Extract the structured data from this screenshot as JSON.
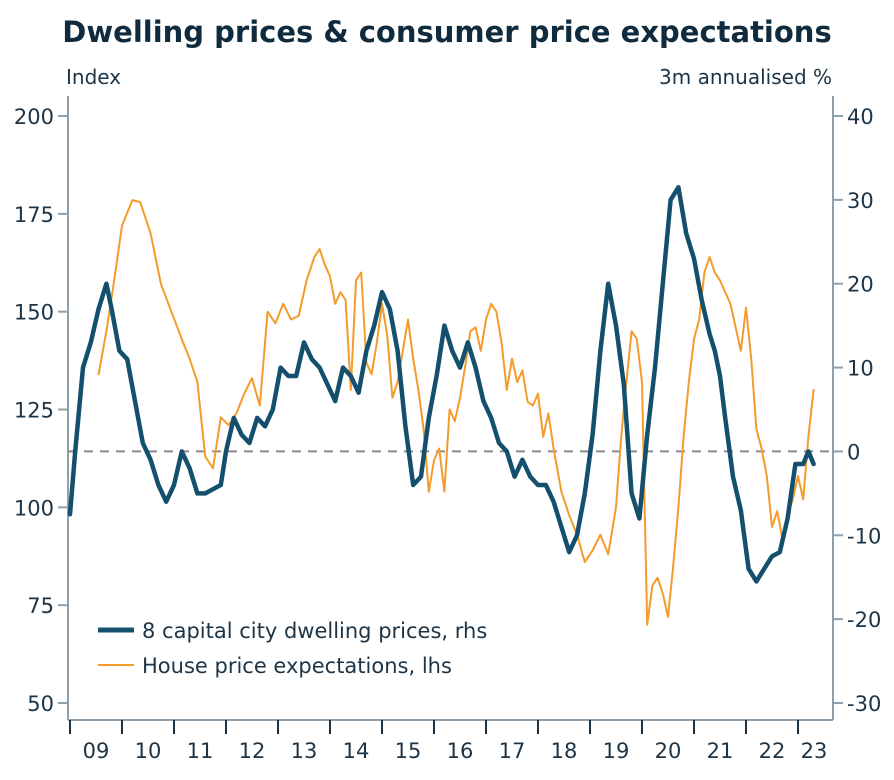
{
  "chart_data": {
    "type": "line",
    "title": "Dwelling prices & consumer price expectations",
    "left_axis": {
      "label": "Index",
      "ylim": [
        50,
        200
      ],
      "ticks": [
        50,
        75,
        100,
        125,
        150,
        175,
        200
      ]
    },
    "right_axis": {
      "label": "3m annualised %",
      "ylim": [
        -30,
        40
      ],
      "ticks": [
        -30,
        -20,
        -10,
        0,
        10,
        20,
        30,
        40
      ]
    },
    "x_axis": {
      "xlim": [
        2009.0,
        2023.6
      ],
      "tick_labels": [
        "09",
        "10",
        "11",
        "12",
        "13",
        "14",
        "15",
        "16",
        "17",
        "18",
        "19",
        "20",
        "21",
        "22",
        "23"
      ]
    },
    "reference_line": {
      "axis": "right",
      "value": 0,
      "style": "dashed"
    },
    "legend": {
      "placement": "bottom-left"
    },
    "colors": {
      "dwelling": "#14506e",
      "expectations": "#f59b2a",
      "axis": "#8fa0aa",
      "text": "#1c3446",
      "refline": "#8a8a8a"
    },
    "series": [
      {
        "name": "8 capital city dwelling prices, rhs",
        "axis": "right",
        "x": [
          2009.0,
          2009.1,
          2009.25,
          2009.4,
          2009.55,
          2009.7,
          2009.8,
          2009.95,
          2010.1,
          2010.25,
          2010.4,
          2010.55,
          2010.7,
          2010.85,
          2011.0,
          2011.15,
          2011.3,
          2011.45,
          2011.6,
          2011.75,
          2011.9,
          2012.0,
          2012.15,
          2012.3,
          2012.45,
          2012.6,
          2012.75,
          2012.9,
          2013.05,
          2013.2,
          2013.35,
          2013.5,
          2013.65,
          2013.8,
          2013.95,
          2014.1,
          2014.25,
          2014.4,
          2014.55,
          2014.7,
          2014.85,
          2015.0,
          2015.15,
          2015.3,
          2015.45,
          2015.6,
          2015.75,
          2015.9,
          2016.05,
          2016.2,
          2016.35,
          2016.5,
          2016.65,
          2016.8,
          2016.95,
          2017.1,
          2017.25,
          2017.4,
          2017.55,
          2017.7,
          2017.85,
          2018.0,
          2018.15,
          2018.3,
          2018.45,
          2018.6,
          2018.75,
          2018.9,
          2019.05,
          2019.2,
          2019.35,
          2019.5,
          2019.65,
          2019.8,
          2019.95,
          2020.1,
          2020.25,
          2020.4,
          2020.55,
          2020.7,
          2020.85,
          2021.0,
          2021.15,
          2021.3,
          2021.4,
          2021.5,
          2021.6,
          2021.75,
          2021.9,
          2022.05,
          2022.2,
          2022.35,
          2022.5,
          2022.65,
          2022.8,
          2022.95,
          2023.1,
          2023.2,
          2023.3
        ],
        "values": [
          -7.5,
          0,
          10,
          13,
          17,
          20,
          17,
          12,
          11,
          6,
          1,
          -1,
          -4,
          -6,
          -4,
          0,
          -2,
          -5,
          -5,
          -4.5,
          -4,
          0,
          4,
          2,
          1,
          4,
          3,
          5,
          10,
          9,
          9,
          13,
          11,
          10,
          8,
          6,
          10,
          9,
          7,
          12,
          15,
          19,
          17,
          12,
          3,
          -4,
          -3,
          4,
          9,
          15,
          12,
          10,
          13,
          10,
          6,
          4,
          1,
          0,
          -3,
          -1,
          -3,
          -4,
          -4,
          -6,
          -9,
          -12,
          -10,
          -5,
          2,
          12,
          20,
          15,
          8,
          -5,
          -8,
          2,
          10,
          20,
          30,
          31.5,
          26,
          23,
          18,
          14,
          12,
          9,
          4,
          -3,
          -7,
          -14,
          -15.5,
          -14,
          -12.5,
          -12,
          -8,
          -1.5,
          -1.5,
          0,
          -1.5
        ]
      },
      {
        "name": "House price expectations, lhs",
        "axis": "left",
        "x": [
          2009.55,
          2009.7,
          2009.85,
          2010.0,
          2010.2,
          2010.35,
          2010.55,
          2010.75,
          2010.95,
          2011.15,
          2011.3,
          2011.45,
          2011.6,
          2011.75,
          2011.9,
          2012.05,
          2012.2,
          2012.35,
          2012.5,
          2012.65,
          2012.8,
          2012.95,
          2013.1,
          2013.25,
          2013.4,
          2013.55,
          2013.7,
          2013.8,
          2013.9,
          2014.0,
          2014.1,
          2014.2,
          2014.3,
          2014.4,
          2014.5,
          2014.6,
          2014.7,
          2014.8,
          2014.9,
          2015.0,
          2015.1,
          2015.2,
          2015.3,
          2015.4,
          2015.5,
          2015.6,
          2015.7,
          2015.8,
          2015.9,
          2016.0,
          2016.1,
          2016.2,
          2016.3,
          2016.4,
          2016.5,
          2016.6,
          2016.7,
          2016.8,
          2016.9,
          2017.0,
          2017.1,
          2017.2,
          2017.3,
          2017.4,
          2017.5,
          2017.6,
          2017.7,
          2017.8,
          2017.9,
          2018.0,
          2018.1,
          2018.2,
          2018.3,
          2018.45,
          2018.6,
          2018.75,
          2018.9,
          2019.05,
          2019.2,
          2019.35,
          2019.5,
          2019.6,
          2019.7,
          2019.8,
          2019.9,
          2020.0,
          2020.1,
          2020.2,
          2020.3,
          2020.4,
          2020.5,
          2020.6,
          2020.7,
          2020.8,
          2020.9,
          2021.0,
          2021.1,
          2021.2,
          2021.3,
          2021.4,
          2021.5,
          2021.6,
          2021.7,
          2021.8,
          2021.9,
          2022.0,
          2022.1,
          2022.2,
          2022.3,
          2022.4,
          2022.5,
          2022.6,
          2022.7,
          2022.8,
          2022.9,
          2023.0,
          2023.1,
          2023.2,
          2023.3
        ],
        "values": [
          134,
          145,
          158,
          172,
          178.5,
          178,
          170,
          157,
          150,
          143,
          138,
          132,
          113,
          110,
          123,
          121,
          124,
          129,
          133,
          126,
          150,
          147,
          152,
          148,
          149,
          158,
          164,
          166,
          162,
          159,
          152,
          155,
          153,
          130,
          158,
          160,
          137,
          134,
          142,
          152,
          144,
          128,
          132,
          140,
          148,
          138,
          130,
          120,
          104,
          112,
          115,
          104,
          125,
          122,
          128,
          136,
          145,
          146,
          140,
          148,
          152,
          150,
          142,
          130,
          138,
          132,
          135,
          127,
          126,
          129,
          118,
          124,
          115,
          104,
          98,
          93,
          86,
          89,
          93,
          88,
          100,
          118,
          132,
          145,
          143,
          132,
          70,
          80,
          82,
          78,
          72,
          85,
          100,
          118,
          132,
          143,
          148,
          160,
          164,
          160,
          158,
          155,
          152,
          146,
          140,
          151,
          138,
          120,
          115,
          108,
          95,
          99,
          92,
          98,
          102,
          108,
          102,
          118,
          130
        ]
      }
    ]
  }
}
